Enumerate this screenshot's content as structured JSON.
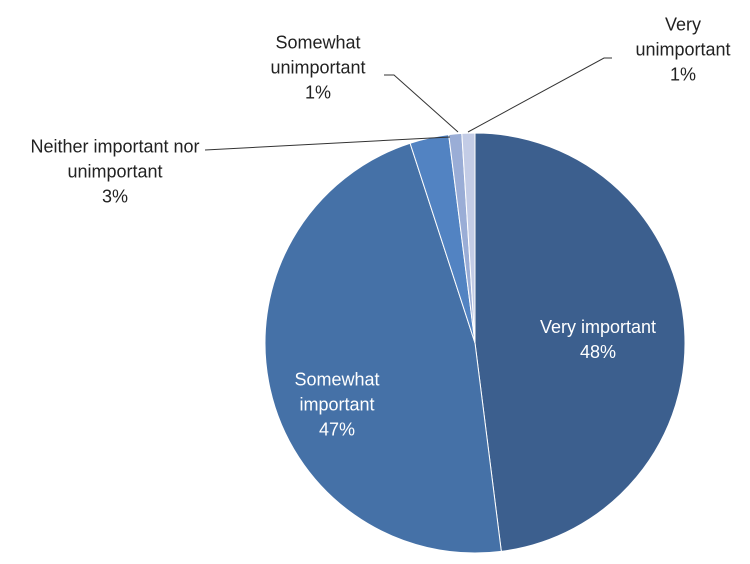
{
  "chart_data": {
    "type": "pie",
    "categories": [
      "Very important",
      "Somewhat important",
      "Neither important nor unimportant",
      "Somewhat unimportant",
      "Very unimportant"
    ],
    "values": [
      48,
      47,
      3,
      1,
      1
    ],
    "value_labels": [
      "48%",
      "47%",
      "3%",
      "1%",
      "1%"
    ],
    "colors": [
      "#3c5f8e",
      "#4571a7",
      "#5283c2",
      "#9aadd6",
      "#c3cce6"
    ]
  }
}
